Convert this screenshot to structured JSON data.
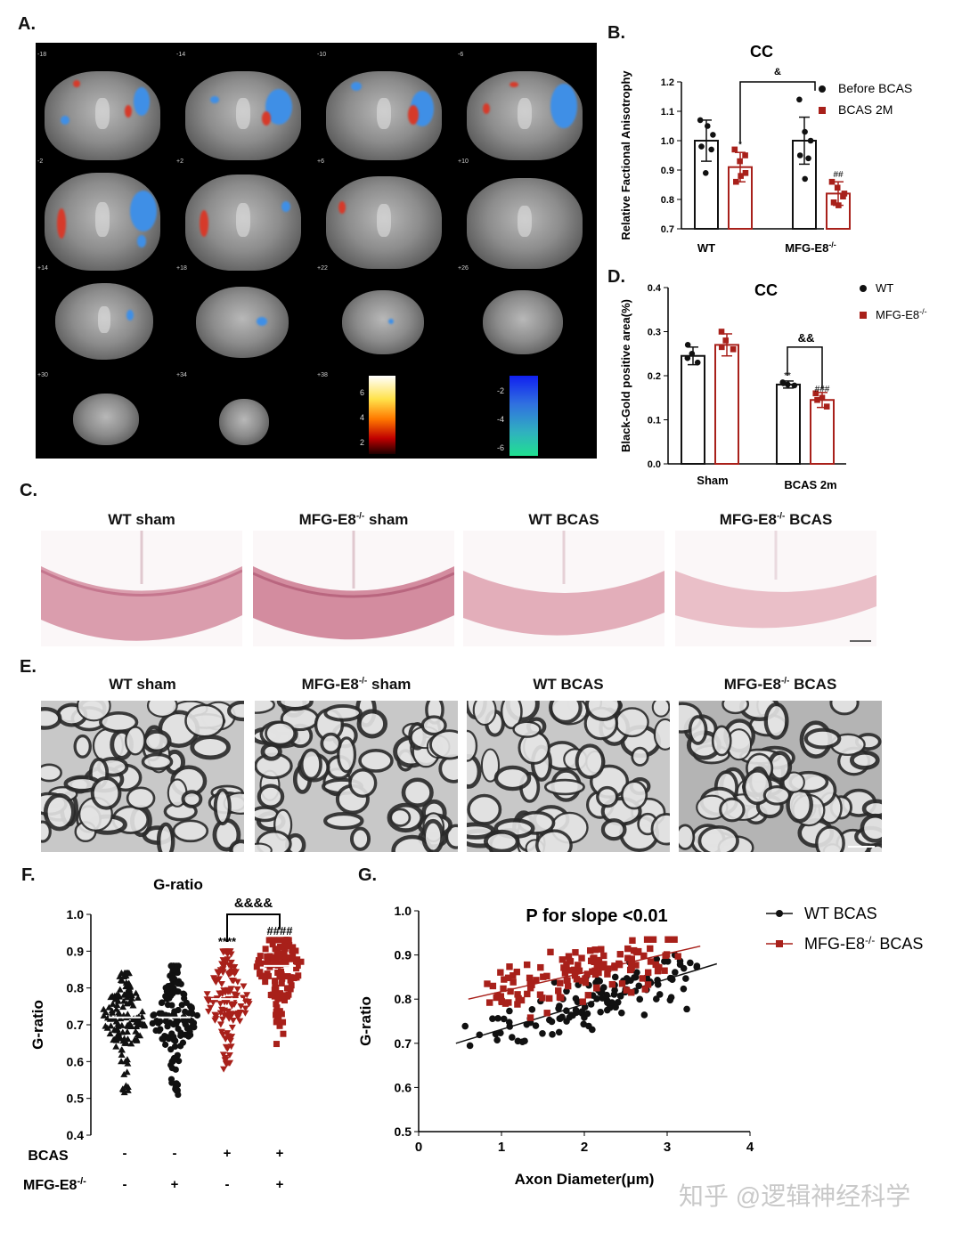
{
  "panel_labels": {
    "a": "A.",
    "b": "B.",
    "c": "C.",
    "d": "D.",
    "e": "E.",
    "f": "F.",
    "g": "G."
  },
  "panel_a": {
    "slice_numbers": [
      "-18",
      "-14",
      "-10",
      "-6",
      "-2",
      "+2",
      "+6",
      "+10",
      "+14",
      "+18",
      "+22",
      "+26",
      "+30",
      "+34",
      "+38"
    ],
    "hot_colorbar_ticks": [
      "6",
      "4",
      "2"
    ],
    "cool_colorbar_ticks": [
      "-2",
      "-4",
      "-6"
    ]
  },
  "section_titles": {
    "c": [
      "WT sham",
      "MFG-E8",
      "-/-",
      " sham",
      "WT BCAS",
      "MFG-E8",
      "-/-",
      " BCAS"
    ],
    "e": [
      "WT sham",
      "MFG-E8",
      "-/-",
      " sham",
      "WT BCAS",
      "MFG-E8",
      "-/-",
      " BCAS"
    ]
  },
  "chart_data": [
    {
      "id": "B",
      "type": "bar",
      "title": "CC",
      "ylabel": "Relative Factional Anisotrophy",
      "ylim": [
        0.7,
        1.2
      ],
      "yticks": [
        "0.7",
        "0.8",
        "0.9",
        "1.0",
        "1.1",
        "1.2"
      ],
      "categories": [
        "WT",
        "MFG-E8-/-"
      ],
      "category_parts": [
        [
          "WT",
          ""
        ],
        [
          "MFG-E8",
          "-/-"
        ]
      ],
      "series": [
        {
          "name": "Before BCAS",
          "color": "#111111",
          "values": [
            1.0,
            1.0
          ],
          "errors": [
            0.07,
            0.08
          ],
          "points": [
            [
              1.07,
              1.05,
              0.97,
              0.98,
              0.89,
              1.02
            ],
            [
              1.14,
              1.03,
              0.94,
              0.95,
              0.87,
              1.0
            ]
          ]
        },
        {
          "name": "BCAS 2M",
          "color": "#a8201a",
          "values": [
            0.91,
            0.82
          ],
          "errors": [
            0.05,
            0.04
          ],
          "points": [
            [
              0.97,
              0.93,
              0.89,
              0.86,
              0.88,
              0.95
            ],
            [
              0.86,
              0.84,
              0.81,
              0.79,
              0.78,
              0.82
            ]
          ]
        }
      ],
      "annotations": {
        "sig_wt": "*",
        "sig_ko": "##",
        "bracket": "&"
      }
    },
    {
      "id": "D",
      "type": "bar",
      "title": "CC",
      "ylabel": "Black-Gold positive area(%)",
      "ylim": [
        0.0,
        0.4
      ],
      "yticks": [
        "0.0",
        "0.1",
        "0.2",
        "0.3",
        "0.4"
      ],
      "categories": [
        "Sham",
        "BCAS 2m"
      ],
      "series": [
        {
          "name": "WT",
          "color": "#111111",
          "values": [
            0.245,
            0.18
          ],
          "errors": [
            0.02,
            0.008
          ],
          "points": [
            [
              0.27,
              0.25,
              0.23,
              0.24
            ],
            [
              0.185,
              0.18,
              0.178,
              0.183
            ]
          ]
        },
        {
          "name": "MFG-E8-/-",
          "color": "#a8201a",
          "values": [
            0.27,
            0.145
          ],
          "errors": [
            0.025,
            0.017
          ],
          "points": [
            [
              0.3,
              0.28,
              0.26,
              0.265
            ],
            [
              0.16,
              0.15,
              0.13,
              0.145
            ]
          ]
        }
      ],
      "legend_parts": [
        [
          "WT",
          ""
        ],
        [
          "MFG-E8",
          "-/-"
        ]
      ],
      "annotations": {
        "sig_wt": "**",
        "sig_ko": "###",
        "bracket": "&&"
      }
    },
    {
      "id": "F",
      "type": "scatter",
      "title": "G-ratio",
      "ylabel": "G-ratio",
      "ylim": [
        0.4,
        1.0
      ],
      "yticks": [
        "0.4",
        "0.5",
        "0.6",
        "0.7",
        "0.8",
        "0.9",
        "1.0"
      ],
      "groups": [
        {
          "bcas": "-",
          "mfg": "-",
          "mean": 0.72,
          "min": 0.51,
          "max": 0.84,
          "color": "#111111",
          "marker": "triangle"
        },
        {
          "bcas": "-",
          "mfg": "+",
          "mean": 0.72,
          "min": 0.51,
          "max": 0.86,
          "color": "#111111",
          "marker": "circle"
        },
        {
          "bcas": "+",
          "mfg": "-",
          "mean": 0.77,
          "min": 0.58,
          "max": 0.9,
          "color": "#a8201a",
          "marker": "triangle-down"
        },
        {
          "bcas": "+",
          "mfg": "+",
          "mean": 0.86,
          "min": 0.64,
          "max": 0.93,
          "color": "#a8201a",
          "marker": "square"
        }
      ],
      "row_labels": {
        "bcas": "BCAS",
        "mfg_base": "MFG-E8",
        "mfg_sup": "-/-"
      },
      "annotations": {
        "sig_wt": "****",
        "sig_ko": "####",
        "bracket": "&&&&"
      }
    },
    {
      "id": "G",
      "type": "scatter",
      "title": "P for slope <0.01",
      "xlabel": "Axon Diameter(μm)",
      "ylabel": "G-ratio",
      "xlim": [
        0,
        4
      ],
      "ylim": [
        0.5,
        1.0
      ],
      "xticks": [
        "0",
        "1",
        "2",
        "3",
        "4"
      ],
      "yticks": [
        "0.5",
        "0.6",
        "0.7",
        "0.8",
        "0.9",
        "1.0"
      ],
      "series": [
        {
          "name": "WT BCAS",
          "color": "#111111",
          "marker": "circle",
          "fit": [
            [
              0.45,
              0.7
            ],
            [
              3.6,
              0.88
            ]
          ],
          "x_range": [
            0.45,
            3.7
          ],
          "y_center_at_1": 0.73
        },
        {
          "name": "MFG-E8-/- BCAS",
          "color": "#a8201a",
          "marker": "square",
          "fit": [
            [
              0.6,
              0.8
            ],
            [
              3.4,
              0.92
            ]
          ],
          "x_range": [
            0.6,
            3.45
          ],
          "y_center_at_1": 0.84
        }
      ],
      "legend_parts": [
        [
          "WT BCAS",
          "",
          ""
        ],
        [
          "MFG-E8",
          "-/-",
          "  BCAS"
        ]
      ]
    }
  ],
  "watermark": "知乎 @逻辑神经科学"
}
